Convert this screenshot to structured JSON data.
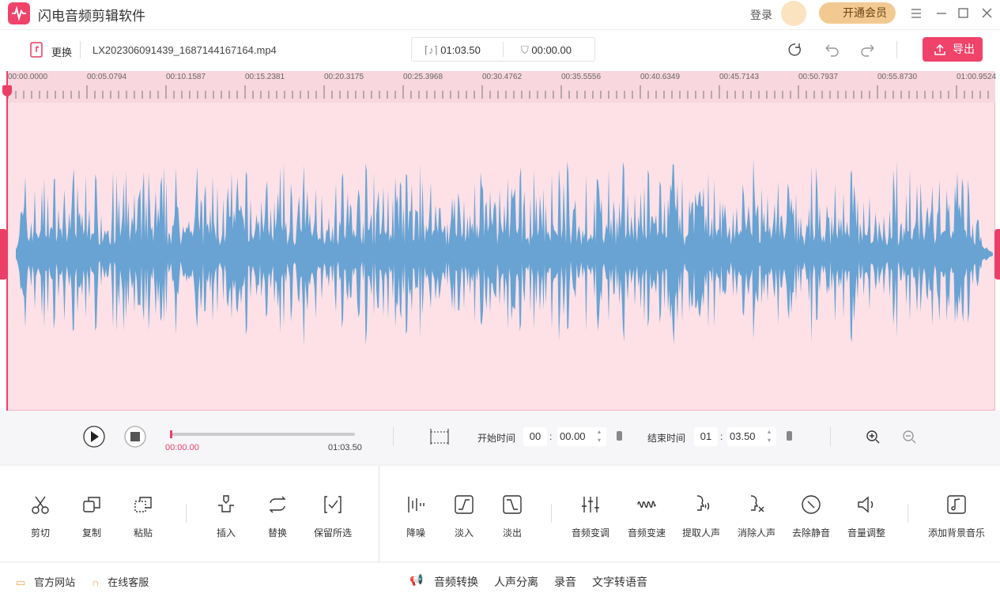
{
  "titlebar": {
    "app_name": "闪电音频剪辑软件",
    "login": "登录",
    "vip": "开通会员"
  },
  "toolbar": {
    "replace": "更换",
    "file_name": "LX202306091439_1687144167164.mp4",
    "duration": "01:03.50",
    "position": "00:00.00",
    "export": "导出"
  },
  "timeline": {
    "ticks": [
      "00:00.0000",
      "00:05.0794",
      "00:10.1587",
      "00:15.2381",
      "00:20.3175",
      "00:25.3968",
      "00:30.4762",
      "00:35.5556",
      "00:40.6349",
      "00:45.7143",
      "00:50.7937",
      "00:55.8730",
      "01:00.9524"
    ]
  },
  "player": {
    "current": "00:00.00",
    "total": "01:03.50",
    "start_label": "开始时间",
    "start_min": "00",
    "start_sec": "00.00",
    "end_label": "结束时间",
    "end_min": "01",
    "end_sec": "03.50",
    "separator": ":"
  },
  "tools": {
    "left": [
      "剪切",
      "复制",
      "粘贴",
      "插入",
      "替换",
      "保留所选"
    ],
    "right": [
      "降噪",
      "淡入",
      "淡出",
      "音频变调",
      "音频变速",
      "提取人声",
      "消除人声",
      "去除静音",
      "音量调整",
      "添加背景音乐"
    ]
  },
  "footer": {
    "website": "官方网站",
    "service": "在线客服",
    "links": [
      "音频转换",
      "人声分离",
      "录音",
      "文字转语音"
    ]
  }
}
